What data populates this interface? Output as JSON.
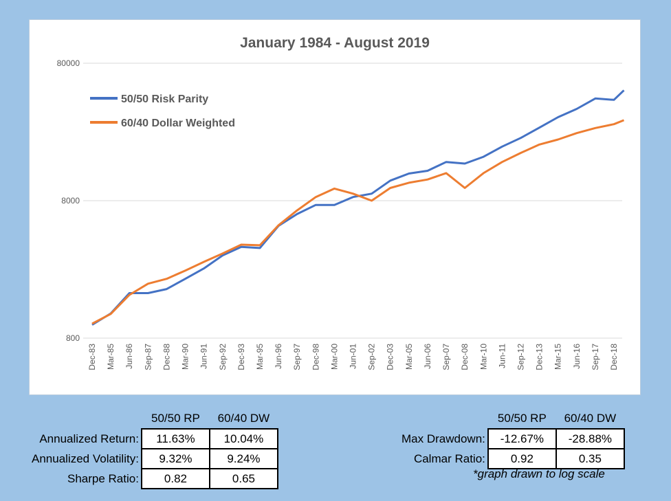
{
  "chart_data": {
    "type": "line",
    "title": "January 1984 - August 2019",
    "y_scale": "log",
    "ylim": [
      800,
      80000
    ],
    "y_ticks": [
      "800",
      "8000",
      "80000"
    ],
    "x_tick_labels": [
      "Dec-83",
      "Mar-85",
      "Jun-86",
      "Sep-87",
      "Dec-88",
      "Mar-90",
      "Jun-91",
      "Sep-92",
      "Dec-93",
      "Mar-95",
      "Jun-96",
      "Sep-97",
      "Dec-98",
      "Mar-00",
      "Jun-01",
      "Sep-02",
      "Dec-03",
      "Mar-05",
      "Jun-06",
      "Sep-07",
      "Dec-08",
      "Mar-10",
      "Jun-11",
      "Sep-12",
      "Dec-13",
      "Mar-15",
      "Jun-16",
      "Sep-17",
      "Dec-18"
    ],
    "x": [
      "Dec-83",
      "Mar-85",
      "Jun-86",
      "Sep-87",
      "Dec-88",
      "Mar-90",
      "Jun-91",
      "Sep-92",
      "Dec-93",
      "Mar-95",
      "Jun-96",
      "Sep-97",
      "Dec-98",
      "Mar-00",
      "Jun-01",
      "Sep-02",
      "Dec-03",
      "Mar-05",
      "Jun-06",
      "Sep-07",
      "Dec-08",
      "Mar-10",
      "Jun-11",
      "Sep-12",
      "Dec-13",
      "Mar-15",
      "Jun-16",
      "Sep-17",
      "Dec-18",
      "Aug-19"
    ],
    "grid": true,
    "legend_position": "top-left",
    "series": [
      {
        "name": "50/50 Risk Parity",
        "color": "#4472c4",
        "values": [
          1000,
          1210,
          1700,
          1700,
          1820,
          2160,
          2570,
          3200,
          3690,
          3620,
          5250,
          6400,
          7450,
          7450,
          8500,
          9000,
          11200,
          12600,
          13200,
          15300,
          14900,
          16700,
          19800,
          22900,
          27200,
          32400,
          37200,
          44300,
          43300,
          50800
        ]
      },
      {
        "name": "60/40 Dollar Weighted",
        "color": "#ed7d31",
        "values": [
          1020,
          1200,
          1650,
          1990,
          2160,
          2480,
          2870,
          3300,
          3830,
          3790,
          5300,
          6800,
          8500,
          9800,
          9000,
          8000,
          9900,
          10800,
          11400,
          12700,
          9900,
          12700,
          15300,
          17800,
          20500,
          22300,
          24800,
          27000,
          28800,
          30800
        ]
      }
    ]
  },
  "table_left": {
    "headers": [
      "50/50 RP",
      "60/40 DW"
    ],
    "rows": [
      {
        "label": "Annualized Return:",
        "values": [
          "11.63%",
          "10.04%"
        ]
      },
      {
        "label": "Annualized Volatility:",
        "values": [
          "9.32%",
          "9.24%"
        ]
      },
      {
        "label": "Sharpe Ratio:",
        "values": [
          "0.82",
          "0.65"
        ]
      }
    ]
  },
  "table_right": {
    "headers": [
      "50/50 RP",
      "60/40 DW"
    ],
    "rows": [
      {
        "label": "Max Drawdown:",
        "values": [
          "-12.67%",
          "-28.88%"
        ]
      },
      {
        "label": "Calmar Ratio:",
        "values": [
          "0.92",
          "0.35"
        ]
      }
    ]
  },
  "note": "*graph drawn to log scale"
}
